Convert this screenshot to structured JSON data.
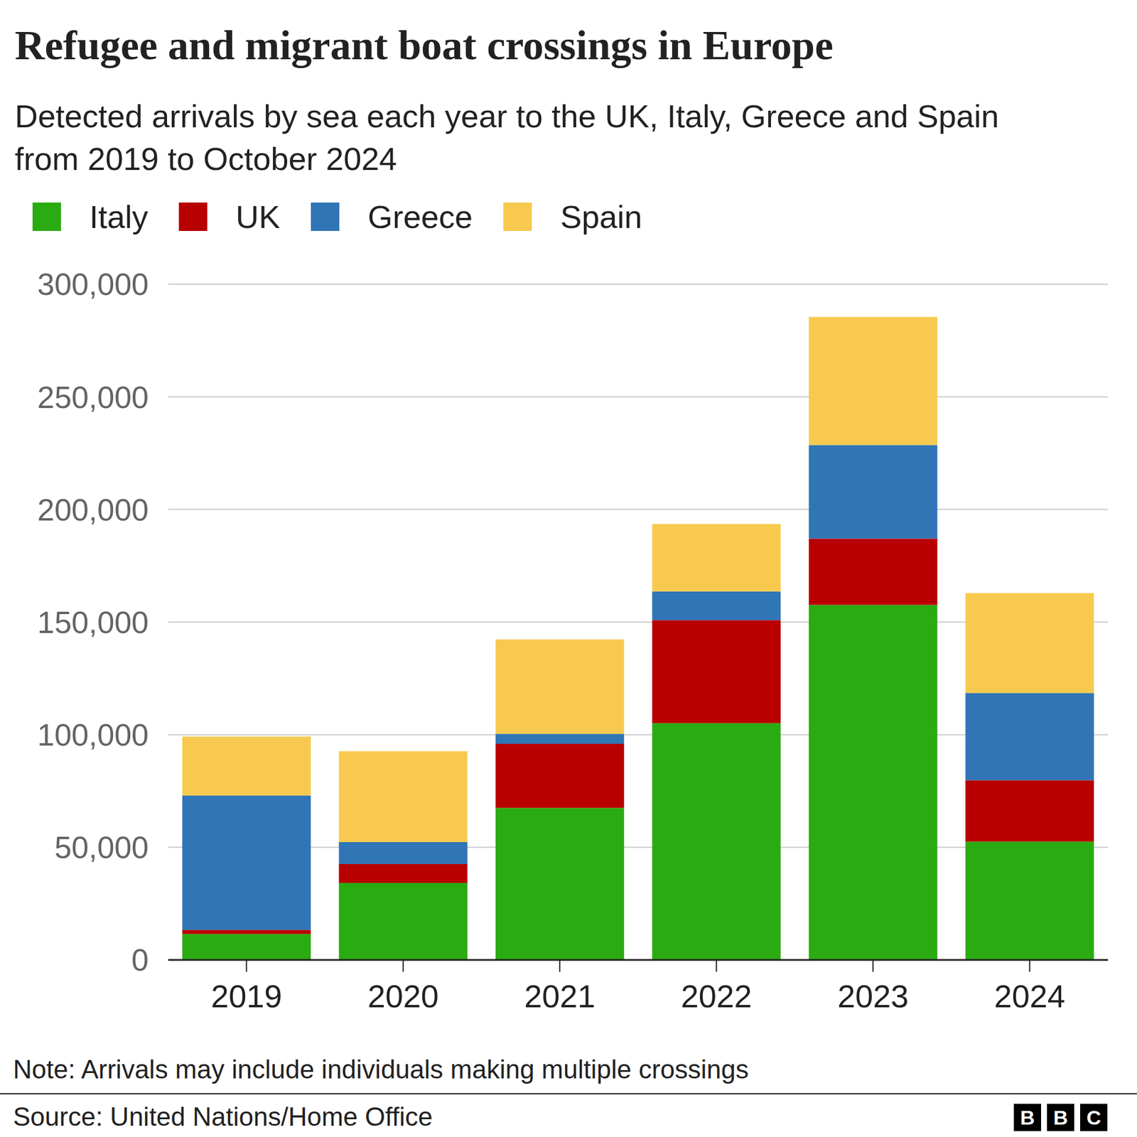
{
  "chart_data": {
    "type": "bar",
    "title": "Refugee and migrant boat crossings in Europe",
    "subtitle": "Detected arrivals by sea each year to the UK, Italy, Greece and Spain from 2019 to October 2024",
    "categories": [
      "2019",
      "2020",
      "2021",
      "2022",
      "2023",
      "2024"
    ],
    "series": [
      {
        "name": "Italy",
        "color": "#2aab12",
        "values": [
          11500,
          34150,
          67500,
          105100,
          157600,
          52500
        ]
      },
      {
        "name": "UK",
        "color": "#b80000",
        "values": [
          1850,
          8450,
          28500,
          45750,
          29450,
          27300
        ]
      },
      {
        "name": "Greece",
        "color": "#3075b5",
        "values": [
          59700,
          9700,
          4350,
          12750,
          41550,
          38700
        ]
      },
      {
        "name": "Spain",
        "color": "#f7ca4f",
        "values": [
          26150,
          40350,
          41950,
          30000,
          56850,
          44400
        ]
      }
    ],
    "ylim": [
      0,
      300000
    ],
    "yticks": [
      {
        "value": 0,
        "label": "0"
      },
      {
        "value": 50000,
        "label": "50,000"
      },
      {
        "value": 100000,
        "label": "100,000"
      },
      {
        "value": 150000,
        "label": "150,000"
      },
      {
        "value": 200000,
        "label": "200,000"
      },
      {
        "value": 250000,
        "label": "250,000"
      },
      {
        "value": 300000,
        "label": "300,000"
      }
    ],
    "grid": true,
    "stacked": true,
    "legend": "top left"
  },
  "note": "Note: Arrivals may include individuals making multiple crossings",
  "source": "Source: United Nations/Home Office",
  "logo": "BBC"
}
